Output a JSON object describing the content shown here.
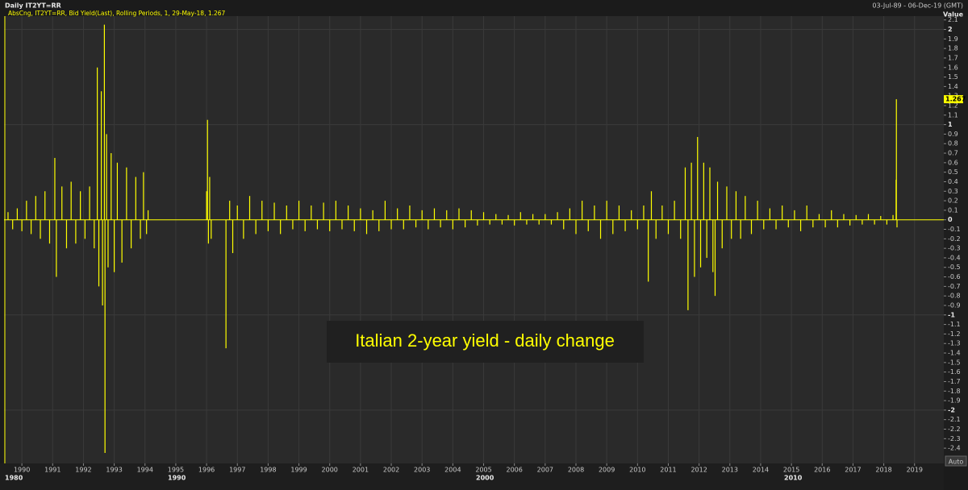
{
  "header": {
    "title": "Daily IT2YT=RR",
    "date_range": "03-Jul-89 - 06-Dec-19 (GMT)",
    "button": "Auto"
  },
  "chart_data": {
    "type": "bar",
    "legend": "AbsCng, IT2YT=RR, Bid Yield(Last), Rolling Periods, 1, 29-May-18, 1.267",
    "annotation": "Italian 2-year yield - daily change",
    "y_axis_title": "Value",
    "last_value": 1.267,
    "color": "#ffff00",
    "grid": true,
    "xlim": [
      1989.42,
      2019.95
    ],
    "xticks": [
      1990,
      1991,
      1992,
      1993,
      1994,
      1995,
      1996,
      1997,
      1998,
      1999,
      2000,
      2001,
      2002,
      2003,
      2004,
      2005,
      2006,
      2007,
      2008,
      2009,
      2010,
      2011,
      2012,
      2013,
      2014,
      2015,
      2016,
      2017,
      2018,
      2019
    ],
    "decade_labels": [
      "1980",
      "1990",
      "2000",
      "2010"
    ],
    "ylim": [
      -2.56,
      2.14
    ],
    "yticks": [
      2.1,
      2,
      1.9,
      1.8,
      1.7,
      1.6,
      1.5,
      1.4,
      1.3,
      1.2,
      1.1,
      1,
      0.9,
      0.8,
      0.7,
      0.6,
      0.5,
      0.4,
      0.3,
      0.2,
      0.1,
      0,
      -0.1,
      -0.2,
      -0.3,
      -0.4,
      -0.5,
      -0.6,
      -0.7,
      -0.8,
      -0.9,
      -1,
      -1.1,
      -1.2,
      -1.3,
      -1.4,
      -1.5,
      -1.6,
      -1.7,
      -1.8,
      -1.9,
      -2,
      -2.1,
      -2.2,
      -2.3,
      -2.4
    ],
    "x": [
      1989.55,
      1989.7,
      1989.85,
      1990.0,
      1990.15,
      1990.3,
      1990.45,
      1990.6,
      1990.75,
      1990.9,
      1991.07,
      1991.12,
      1991.3,
      1991.45,
      1991.6,
      1991.75,
      1991.9,
      1992.05,
      1992.2,
      1992.35,
      1992.45,
      1992.5,
      1992.58,
      1992.62,
      1992.68,
      1992.7,
      1992.75,
      1992.8,
      1992.9,
      1993.0,
      1993.1,
      1993.25,
      1993.4,
      1993.55,
      1993.7,
      1993.85,
      1993.95,
      1994.05,
      1994.1,
      1996.0,
      1996.03,
      1996.06,
      1996.1,
      1996.15,
      1996.63,
      1996.75,
      1996.85,
      1997.0,
      1997.2,
      1997.4,
      1997.6,
      1997.8,
      1998.0,
      1998.2,
      1998.4,
      1998.6,
      1998.8,
      1999.0,
      1999.2,
      1999.4,
      1999.6,
      1999.8,
      2000.0,
      2000.2,
      2000.4,
      2000.6,
      2000.8,
      2001.0,
      2001.2,
      2001.4,
      2001.6,
      2001.8,
      2002.0,
      2002.2,
      2002.4,
      2002.6,
      2002.8,
      2003.0,
      2003.2,
      2003.4,
      2003.6,
      2003.8,
      2004.0,
      2004.2,
      2004.4,
      2004.6,
      2004.8,
      2005.0,
      2005.2,
      2005.4,
      2005.6,
      2005.8,
      2006.0,
      2006.2,
      2006.4,
      2006.6,
      2006.8,
      2007.0,
      2007.2,
      2007.4,
      2007.6,
      2007.8,
      2008.0,
      2008.2,
      2008.4,
      2008.6,
      2008.8,
      2009.0,
      2009.2,
      2009.4,
      2009.6,
      2009.8,
      2010.0,
      2010.2,
      2010.35,
      2010.45,
      2010.6,
      2010.8,
      2011.0,
      2011.2,
      2011.4,
      2011.55,
      2011.64,
      2011.75,
      2011.85,
      2011.95,
      2012.05,
      2012.15,
      2012.25,
      2012.35,
      2012.45,
      2012.52,
      2012.6,
      2012.75,
      2012.9,
      2013.05,
      2013.2,
      2013.35,
      2013.5,
      2013.7,
      2013.9,
      2014.1,
      2014.3,
      2014.5,
      2014.7,
      2014.9,
      2015.1,
      2015.3,
      2015.5,
      2015.7,
      2015.9,
      2016.1,
      2016.3,
      2016.5,
      2016.7,
      2016.9,
      2017.1,
      2017.3,
      2017.5,
      2017.7,
      2017.9,
      2018.1,
      2018.3,
      2018.4,
      2018.41,
      2018.43
    ],
    "values": [
      0.08,
      -0.1,
      0.12,
      -0.12,
      0.2,
      -0.15,
      0.25,
      -0.2,
      0.3,
      -0.25,
      0.65,
      -0.6,
      0.35,
      -0.3,
      0.4,
      -0.25,
      0.3,
      -0.2,
      0.35,
      -0.3,
      1.6,
      -0.7,
      1.35,
      -0.9,
      2.05,
      -2.45,
      0.9,
      -0.5,
      0.7,
      -0.55,
      0.6,
      -0.45,
      0.55,
      -0.3,
      0.45,
      -0.2,
      0.5,
      -0.15,
      0.1,
      0.3,
      1.05,
      -0.25,
      0.45,
      -0.2,
      -1.35,
      0.2,
      -0.35,
      0.15,
      -0.2,
      0.25,
      -0.15,
      0.2,
      -0.12,
      0.18,
      -0.15,
      0.15,
      -0.1,
      0.2,
      -0.12,
      0.15,
      -0.1,
      0.18,
      -0.12,
      0.2,
      -0.1,
      0.15,
      -0.12,
      0.12,
      -0.15,
      0.1,
      -0.12,
      0.2,
      -0.1,
      0.12,
      -0.1,
      0.15,
      -0.08,
      0.1,
      -0.1,
      0.12,
      -0.08,
      0.1,
      -0.1,
      0.12,
      -0.08,
      0.1,
      -0.06,
      0.08,
      -0.05,
      0.06,
      -0.05,
      0.05,
      -0.06,
      0.08,
      -0.05,
      0.06,
      -0.05,
      0.06,
      -0.05,
      0.08,
      -0.1,
      0.12,
      -0.15,
      0.2,
      -0.12,
      0.15,
      -0.2,
      0.2,
      -0.15,
      0.15,
      -0.12,
      0.1,
      -0.1,
      0.15,
      -0.65,
      0.3,
      -0.2,
      0.15,
      -0.15,
      0.2,
      -0.2,
      0.55,
      -0.95,
      0.6,
      -0.6,
      0.87,
      -0.5,
      0.6,
      -0.4,
      0.55,
      -0.55,
      -0.8,
      0.4,
      -0.3,
      0.35,
      -0.2,
      0.3,
      -0.2,
      0.25,
      -0.15,
      0.2,
      -0.1,
      0.12,
      -0.1,
      0.15,
      -0.08,
      0.1,
      -0.12,
      0.15,
      -0.08,
      0.06,
      -0.08,
      0.1,
      -0.08,
      0.06,
      -0.06,
      0.05,
      -0.05,
      0.06,
      -0.05,
      0.04,
      -0.05,
      0.05,
      0.42,
      1.267,
      -0.08
    ]
  }
}
